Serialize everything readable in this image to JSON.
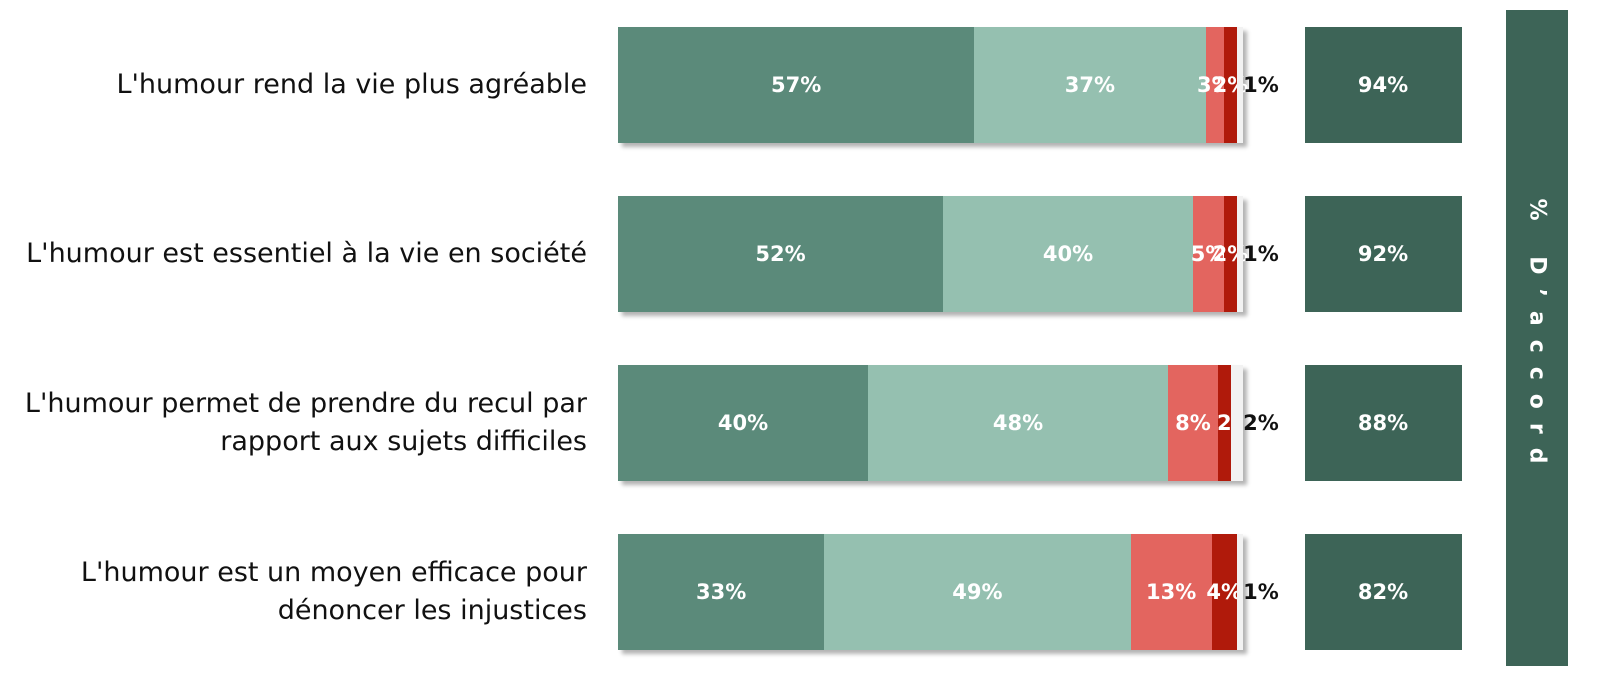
{
  "chart_data": {
    "type": "stacked-bar",
    "categories": [
      [
        "L'humour rend la vie plus agréable"
      ],
      [
        "L'humour est essentiel à la vie en société"
      ],
      [
        "L'humour permet de prendre du recul par",
        "rapport aux sujets difficiles"
      ],
      [
        "L'humour est un moyen efficace pour",
        "dénoncer les injustices"
      ]
    ],
    "xlim": [
      0,
      100
    ],
    "series": [
      {
        "color": "#5b8a7a",
        "values": [
          57,
          52,
          40,
          33
        ],
        "value_labels": [
          "57%",
          "52%",
          "40%",
          "33%"
        ]
      },
      {
        "color": "#95c0b0",
        "values": [
          37,
          40,
          48,
          49
        ],
        "value_labels": [
          "37%",
          "40%",
          "48%",
          "49%"
        ]
      },
      {
        "color": "#e3655f",
        "values": [
          3,
          5,
          8,
          13
        ],
        "value_labels": [
          "3%",
          "5%",
          "8%",
          "13%"
        ]
      },
      {
        "color": "#b01a0b",
        "values": [
          2,
          2,
          2,
          4
        ],
        "value_labels": [
          "2%",
          "2%",
          "2",
          "4%"
        ]
      },
      {
        "color": "#f2f2f2",
        "values": [
          1,
          1,
          2,
          1
        ],
        "value_labels": [
          "1%",
          "1%",
          "2%",
          "1%"
        ]
      }
    ],
    "totals": {
      "title": "% D’accord",
      "color": "#3d6457",
      "values": [
        94,
        92,
        88,
        82
      ],
      "value_labels": [
        "94%",
        "92%",
        "88%",
        "82%"
      ]
    }
  }
}
